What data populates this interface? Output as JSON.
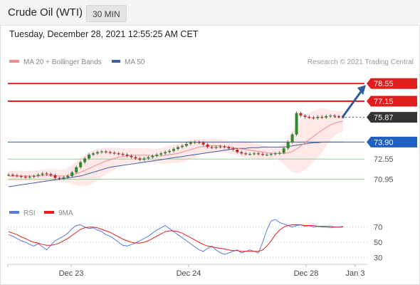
{
  "header": {
    "title": "Crude Oil (WTI)",
    "timeframe": "30 MIN",
    "datetime": "Tuesday, December 28, 2021 12:55:25 AM CET"
  },
  "legend": {
    "ma20_label": "MA 20 + Bollinger Bands",
    "ma50_label": "MA 50",
    "credit": "Research © 2021 Trading Central"
  },
  "rsi_legend": {
    "rsi_label": "RSI",
    "ma_label": "9MA"
  },
  "colors": {
    "resistance": "#e01e1e",
    "support": "#8fd48f",
    "ma20": "#f08c8c",
    "ma50": "#3d5f9e",
    "bollinger": "#fde0e0",
    "pivot": "#1f5fbf",
    "arrow": "#2c5b9e",
    "candle_up": "#2e8b2e",
    "candle_down": "#cc2222",
    "rsi": "#5b7bd6",
    "rsi_ma": "#e02020"
  },
  "chart_data": [
    {
      "type": "line",
      "title": "Crude Oil (WTI)",
      "x_ticks": [
        "Dec 23",
        "Dec 24",
        "Dec 28",
        "Jan 3"
      ],
      "ylim": [
        69.9,
        79.3
      ],
      "levels": [
        {
          "value": 78.55,
          "label": "78.55",
          "kind": "resistance"
        },
        {
          "value": 77.15,
          "label": "77.15",
          "kind": "resistance"
        },
        {
          "value": 75.87,
          "label": "75.87",
          "kind": "last"
        },
        {
          "value": 73.9,
          "label": "73.90",
          "kind": "pivot"
        },
        {
          "value": 72.55,
          "label": "72.55",
          "kind": "support"
        },
        {
          "value": 70.95,
          "label": "70.95",
          "kind": "support"
        }
      ],
      "series": [
        {
          "name": "Price",
          "values": [
            71.3,
            71.25,
            71.2,
            71.15,
            71.1,
            71.15,
            71.2,
            71.3,
            71.4,
            71.35,
            71.25,
            71.05,
            71.0,
            71.1,
            71.2,
            71.5,
            71.9,
            72.3,
            72.6,
            72.9,
            73.0,
            73.1,
            73.15,
            73.1,
            73.05,
            73.0,
            72.95,
            72.9,
            72.8,
            72.7,
            72.6,
            72.5,
            72.6,
            72.7,
            72.8,
            72.9,
            73.0,
            73.1,
            73.2,
            73.35,
            73.5,
            73.6,
            73.75,
            73.85,
            73.9,
            73.85,
            73.7,
            73.5,
            73.45,
            73.5,
            73.55,
            73.5,
            73.4,
            73.3,
            73.1,
            73.0,
            72.95,
            72.95,
            73.0,
            72.95,
            72.9,
            72.9,
            72.95,
            73.0,
            73.05,
            73.4,
            73.9,
            74.5,
            76.2,
            76.0,
            75.9,
            75.85,
            75.8,
            75.9,
            75.85,
            75.95,
            76.0,
            75.95,
            75.9,
            75.87
          ]
        },
        {
          "name": "MA 20",
          "values": [
            71.2,
            71.2,
            71.2,
            71.2,
            71.2,
            71.2,
            71.2,
            71.2,
            71.25,
            71.25,
            71.25,
            71.25,
            71.2,
            71.2,
            71.25,
            71.3,
            71.4,
            71.5,
            71.65,
            71.8,
            71.95,
            72.1,
            72.25,
            72.4,
            72.5,
            72.6,
            72.7,
            72.75,
            72.8,
            72.85,
            72.85,
            72.85,
            72.85,
            72.85,
            72.8,
            72.8,
            72.8,
            72.85,
            72.9,
            72.95,
            73.0,
            73.1,
            73.2,
            73.3,
            73.4,
            73.5,
            73.55,
            73.6,
            73.6,
            73.6,
            73.6,
            73.55,
            73.5,
            73.45,
            73.4,
            73.35,
            73.3,
            73.25,
            73.2,
            73.15,
            73.1,
            73.05,
            73.0,
            73.0,
            73.0,
            73.0,
            73.05,
            73.15,
            73.35,
            73.6,
            73.85,
            74.1,
            74.35,
            74.6,
            74.85,
            75.05,
            75.25,
            75.4,
            75.5,
            75.55
          ]
        },
        {
          "name": "MA 50",
          "values": [
            70.35,
            70.4,
            70.45,
            70.5,
            70.55,
            70.6,
            70.65,
            70.7,
            70.75,
            70.8,
            70.85,
            70.9,
            70.95,
            71.0,
            71.05,
            71.1,
            71.15,
            71.2,
            71.3,
            71.4,
            71.5,
            71.6,
            71.7,
            71.8,
            71.9,
            71.95,
            72.0,
            72.05,
            72.1,
            72.15,
            72.2,
            72.25,
            72.3,
            72.35,
            72.4,
            72.45,
            72.5,
            72.55,
            72.6,
            72.65,
            72.7,
            72.75,
            72.8,
            72.85,
            72.9,
            72.95,
            73.0,
            73.05,
            73.1,
            73.15,
            73.2,
            73.25,
            73.3,
            73.35,
            73.4,
            73.4,
            73.4,
            73.45,
            73.45,
            73.45,
            73.5,
            73.5,
            73.5,
            73.5,
            73.5,
            73.5,
            73.55,
            73.6,
            73.65,
            73.7,
            73.75,
            73.8,
            73.85,
            73.85,
            73.9,
            73.9,
            73.9,
            73.9,
            73.9,
            73.9
          ]
        }
      ]
    },
    {
      "type": "line",
      "ylim": [
        20,
        80
      ],
      "y_ticks": [
        70,
        50,
        30
      ],
      "series": [
        {
          "name": "RSI",
          "values": [
            60,
            58,
            55,
            52,
            50,
            47,
            45,
            48,
            44,
            40,
            46,
            52,
            55,
            58,
            62,
            68,
            72,
            73,
            70,
            68,
            69,
            66,
            64,
            60,
            58,
            54,
            50,
            46,
            45,
            47,
            49,
            52,
            55,
            58,
            62,
            66,
            69,
            72,
            68,
            64,
            60,
            56,
            52,
            48,
            44,
            40,
            38,
            42,
            45,
            40,
            36,
            34,
            36,
            38,
            40,
            36,
            38,
            40,
            38,
            36,
            50,
            66,
            78,
            80,
            76,
            74,
            72,
            70,
            72,
            73,
            71,
            72,
            70,
            71,
            70,
            70,
            69,
            70,
            70,
            71
          ]
        },
        {
          "name": "9MA",
          "values": [
            64,
            62,
            60,
            57,
            55,
            52,
            50,
            49,
            47,
            46,
            46,
            47,
            49,
            52,
            55,
            59,
            63,
            67,
            69,
            70,
            70,
            69,
            67,
            65,
            63,
            60,
            57,
            54,
            52,
            50,
            49,
            49,
            50,
            52,
            55,
            58,
            61,
            64,
            65,
            65,
            64,
            62,
            59,
            56,
            53,
            50,
            47,
            45,
            44,
            43,
            42,
            41,
            40,
            39,
            39,
            38,
            38,
            38,
            38,
            38,
            40,
            45,
            52,
            60,
            66,
            70,
            72,
            73,
            73,
            73,
            72,
            72,
            72,
            71,
            71,
            71,
            71,
            70,
            70,
            70
          ]
        }
      ]
    }
  ]
}
